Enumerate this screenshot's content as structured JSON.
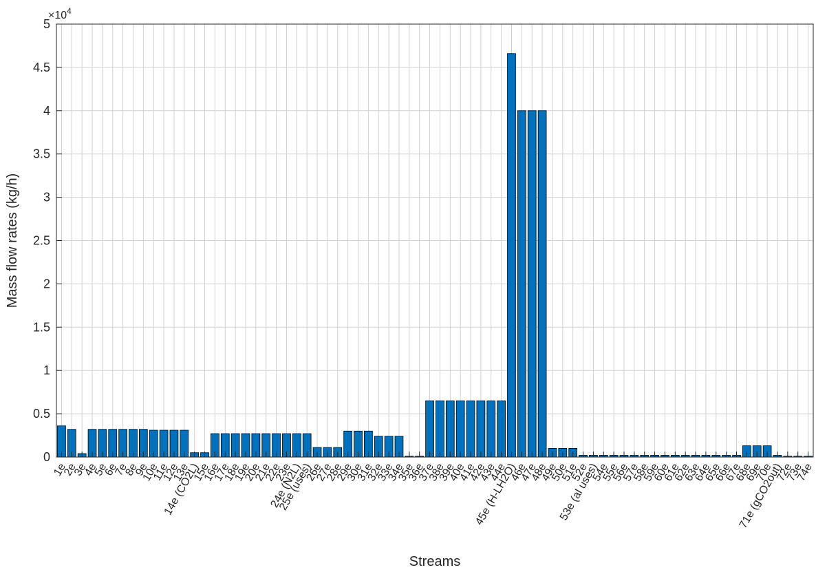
{
  "chart_data": {
    "type": "bar",
    "xlabel": "Streams",
    "ylabel": "Mass flow rates (kg/h)",
    "y_multiplier": "×10^4",
    "ylim": [
      0,
      5
    ],
    "yticks": [
      "0",
      "0.5",
      "1",
      "1.5",
      "2",
      "2.5",
      "3",
      "3.5",
      "4",
      "4.5",
      "5"
    ],
    "grid": true,
    "bar_color": "#0072BD",
    "categories": [
      "1e",
      "2e",
      "3e",
      "4e",
      "5e",
      "6e",
      "7e",
      "8e",
      "9e",
      "10e",
      "11e",
      "12e",
      "13e",
      "14e (CO2L)",
      "15e",
      "16e",
      "17e",
      "18e",
      "19e",
      "20e",
      "21e",
      "22e",
      "23e",
      "24e (N2L)",
      "25e (uses)",
      "26e",
      "27e",
      "28e",
      "29e",
      "30e",
      "31e",
      "32e",
      "33e",
      "34e",
      "35e",
      "36e",
      "37e",
      "38e",
      "39e",
      "40e",
      "41e",
      "42e",
      "43e",
      "44e",
      "45e (H-LH2O)",
      "46e",
      "47e",
      "48e",
      "49e",
      "50e",
      "51e",
      "52e",
      "53e (al uses)",
      "54e",
      "55e",
      "56e",
      "57e",
      "58e",
      "59e",
      "60e",
      "61e",
      "62e",
      "63e",
      "64e",
      "65e",
      "66e",
      "67e",
      "68e",
      "69e",
      "70e",
      "71e (gCO2out)",
      "72e",
      "73e",
      "74e"
    ],
    "values": [
      0.36,
      0.32,
      0.04,
      0.32,
      0.32,
      0.32,
      0.32,
      0.32,
      0.32,
      0.31,
      0.31,
      0.31,
      0.31,
      0.05,
      0.05,
      0.27,
      0.27,
      0.27,
      0.27,
      0.27,
      0.27,
      0.27,
      0.27,
      0.27,
      0.27,
      0.11,
      0.11,
      0.11,
      0.3,
      0.3,
      0.3,
      0.24,
      0.24,
      0.24,
      0.01,
      0.01,
      0.65,
      0.65,
      0.65,
      0.65,
      0.65,
      0.65,
      0.65,
      0.65,
      4.66,
      4.0,
      4.0,
      4.0,
      0.1,
      0.1,
      0.1,
      0.02,
      0.02,
      0.02,
      0.02,
      0.02,
      0.02,
      0.02,
      0.02,
      0.02,
      0.02,
      0.02,
      0.02,
      0.02,
      0.02,
      0.02,
      0.02,
      0.13,
      0.13,
      0.13,
      0.02,
      0.01,
      0.01,
      0.01
    ]
  }
}
